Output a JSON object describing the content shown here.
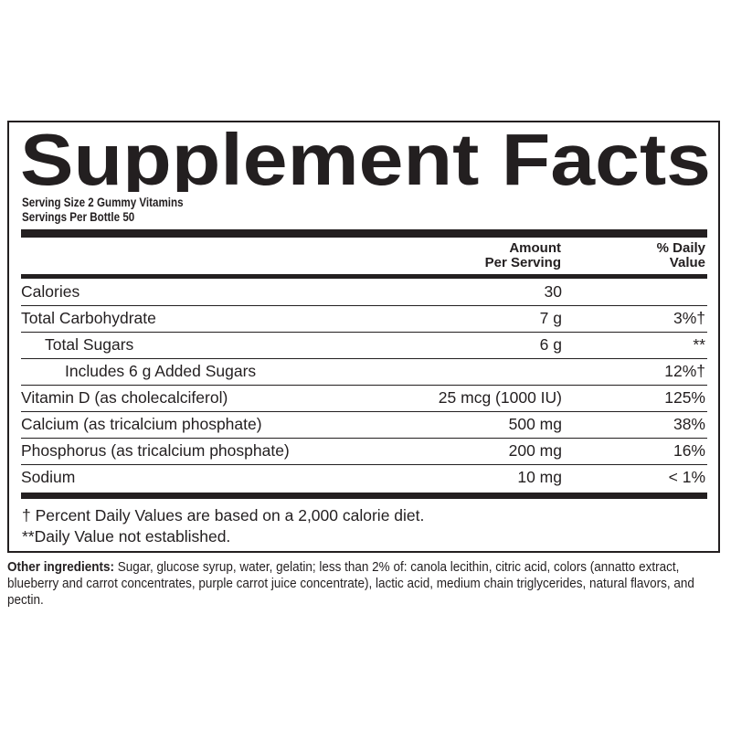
{
  "title": "Supplement Facts",
  "serving_size": "Serving Size 2 Gummy Vitamins",
  "servings_per": "Servings Per Bottle 50",
  "headers": {
    "amount_1": "Amount",
    "amount_2": "Per Serving",
    "dv_1": "% Daily",
    "dv_2": "Value"
  },
  "rows": [
    {
      "name": "Calories",
      "amount": "30",
      "dv": ""
    },
    {
      "name": "Total Carbohydrate",
      "amount": "7 g",
      "dv": "3%†"
    },
    {
      "name": "Total Sugars",
      "amount": "6 g",
      "dv": "**"
    },
    {
      "name": "Includes 6 g Added Sugars",
      "amount": "",
      "dv": "12%†"
    },
    {
      "name": "Vitamin D (as cholecalciferol)",
      "amount": "25 mcg (1000 IU)",
      "dv": "125%"
    },
    {
      "name": "Calcium (as tricalcium phosphate)",
      "amount": "500 mg",
      "dv": "38%"
    },
    {
      "name": "Phosphorus (as tricalcium phosphate)",
      "amount": "200 mg",
      "dv": "16%"
    },
    {
      "name": "Sodium",
      "amount": "10 mg",
      "dv": "< 1%"
    }
  ],
  "footnotes": [
    "† Percent Daily Values are based on a 2,000 calorie diet.",
    "**Daily Value not established."
  ],
  "other_ingredients_label": "Other ingredients:",
  "other_ingredients": " Sugar, glucose syrup, water, gelatin; less than 2% of: canola lecithin, citric acid, colors (annatto extract, blueberry and carrot concentrates, purple carrot juice concentrate), lactic acid, medium chain triglycerides, natural flavors, and pectin."
}
